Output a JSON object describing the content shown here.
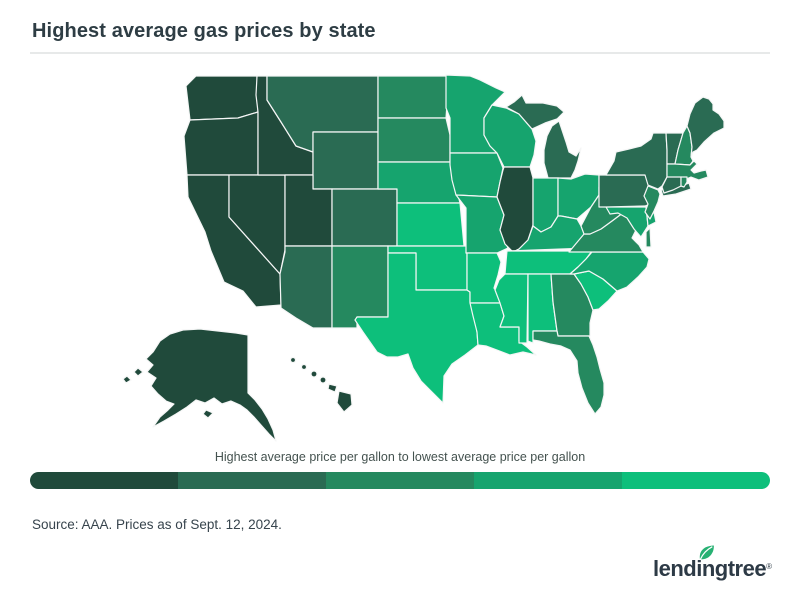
{
  "title": "Highest average gas prices by state",
  "source": "Source: AAA. Prices as of Sept. 12, 2024.",
  "brand": {
    "name": "lendingtree",
    "registered": "®",
    "leaf_color": "#27b173",
    "text_color": "#2d3a46"
  },
  "legend": {
    "label": "Highest average price per gallon to lowest average price per gallon",
    "colors": [
      "#204a3b",
      "#2a6b53",
      "#25895f",
      "#16a46e",
      "#0dbf7b"
    ]
  },
  "colors": {
    "background": "#ffffff",
    "title_text": "#2e3d44",
    "divider": "#e7e9e9",
    "state_border": "#f5f6f6",
    "label_text": "#44524f"
  },
  "chart_data": {
    "type": "heatmap",
    "subtype": "us_state_choropleth",
    "title": "Highest average gas prices by state",
    "legend_label": "Highest average price per gallon to lowest average price per gallon",
    "color_scale": {
      "bins": 5,
      "colors": [
        "#204a3b",
        "#2a6b53",
        "#25895f",
        "#16a46e",
        "#0dbf7b"
      ],
      "meaning": "tier 1 (darkest) = highest average price per gallon, tier 5 (lightest) = lowest average price per gallon"
    },
    "states": [
      {
        "code": "AK",
        "name": "Alaska",
        "tier": 1
      },
      {
        "code": "AL",
        "name": "Alabama",
        "tier": 5
      },
      {
        "code": "AR",
        "name": "Arkansas",
        "tier": 5
      },
      {
        "code": "AZ",
        "name": "Arizona",
        "tier": 2
      },
      {
        "code": "CA",
        "name": "California",
        "tier": 1
      },
      {
        "code": "CO",
        "name": "Colorado",
        "tier": 2
      },
      {
        "code": "CT",
        "name": "Connecticut",
        "tier": 2
      },
      {
        "code": "DE",
        "name": "Delaware",
        "tier": 4
      },
      {
        "code": "FL",
        "name": "Florida",
        "tier": 3
      },
      {
        "code": "GA",
        "name": "Georgia",
        "tier": 3
      },
      {
        "code": "HI",
        "name": "Hawaii",
        "tier": 1
      },
      {
        "code": "IA",
        "name": "Iowa",
        "tier": 4
      },
      {
        "code": "ID",
        "name": "Idaho",
        "tier": 1
      },
      {
        "code": "IL",
        "name": "Illinois",
        "tier": 1
      },
      {
        "code": "IN",
        "name": "Indiana",
        "tier": 4
      },
      {
        "code": "KS",
        "name": "Kansas",
        "tier": 5
      },
      {
        "code": "KY",
        "name": "Kentucky",
        "tier": 4
      },
      {
        "code": "LA",
        "name": "Louisiana",
        "tier": 5
      },
      {
        "code": "MA",
        "name": "Massachusetts",
        "tier": 3
      },
      {
        "code": "MD",
        "name": "Maryland",
        "tier": 4
      },
      {
        "code": "ME",
        "name": "Maine",
        "tier": 2
      },
      {
        "code": "MI",
        "name": "Michigan",
        "tier": 2
      },
      {
        "code": "MN",
        "name": "Minnesota",
        "tier": 4
      },
      {
        "code": "MO",
        "name": "Missouri",
        "tier": 4
      },
      {
        "code": "MS",
        "name": "Mississippi",
        "tier": 5
      },
      {
        "code": "MT",
        "name": "Montana",
        "tier": 2
      },
      {
        "code": "NC",
        "name": "North Carolina",
        "tier": 4
      },
      {
        "code": "ND",
        "name": "North Dakota",
        "tier": 3
      },
      {
        "code": "NE",
        "name": "Nebraska",
        "tier": 4
      },
      {
        "code": "NH",
        "name": "New Hampshire",
        "tier": 3
      },
      {
        "code": "NJ",
        "name": "New Jersey",
        "tier": 3
      },
      {
        "code": "NM",
        "name": "New Mexico",
        "tier": 3
      },
      {
        "code": "NV",
        "name": "Nevada",
        "tier": 1
      },
      {
        "code": "NY",
        "name": "New York",
        "tier": 2
      },
      {
        "code": "OH",
        "name": "Ohio",
        "tier": 4
      },
      {
        "code": "OK",
        "name": "Oklahoma",
        "tier": 5
      },
      {
        "code": "OR",
        "name": "Oregon",
        "tier": 1
      },
      {
        "code": "PA",
        "name": "Pennsylvania",
        "tier": 2
      },
      {
        "code": "RI",
        "name": "Rhode Island",
        "tier": 3
      },
      {
        "code": "SC",
        "name": "South Carolina",
        "tier": 5
      },
      {
        "code": "SD",
        "name": "South Dakota",
        "tier": 3
      },
      {
        "code": "TN",
        "name": "Tennessee",
        "tier": 5
      },
      {
        "code": "TX",
        "name": "Texas",
        "tier": 5
      },
      {
        "code": "UT",
        "name": "Utah",
        "tier": 1
      },
      {
        "code": "VA",
        "name": "Virginia",
        "tier": 3
      },
      {
        "code": "VT",
        "name": "Vermont",
        "tier": 2
      },
      {
        "code": "WA",
        "name": "Washington",
        "tier": 1
      },
      {
        "code": "WI",
        "name": "Wisconsin",
        "tier": 4
      },
      {
        "code": "WV",
        "name": "West Virginia",
        "tier": 3
      },
      {
        "code": "WY",
        "name": "Wyoming",
        "tier": 2
      }
    ]
  }
}
